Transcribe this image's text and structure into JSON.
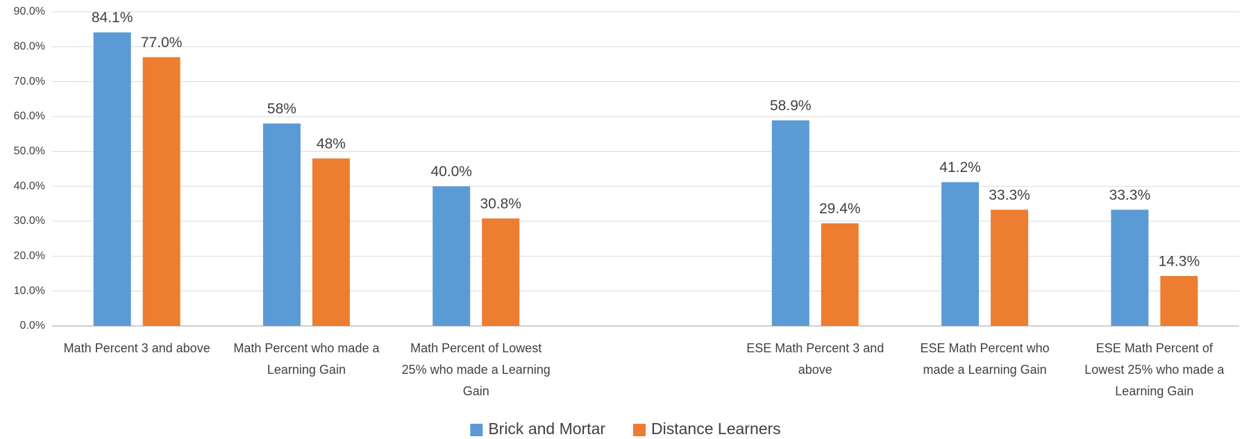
{
  "chart_data": {
    "type": "bar",
    "categories": [
      "Math Percent 3 and above",
      "Math Percent who made a Learning Gain",
      "Math Percent of Lowest 25% who made a Learning Gain",
      null,
      "ESE Math Percent 3 and above",
      "ESE Math Percent who made a Learning Gain",
      "ESE Math Percent of Lowest 25% who made a Learning Gain"
    ],
    "series": [
      {
        "name": "Brick and Mortar",
        "color": "#5b9bd5",
        "values": [
          84.1,
          58,
          40.0,
          null,
          58.9,
          41.2,
          33.3
        ],
        "value_labels": [
          "84.1%",
          "58%",
          "40.0%",
          null,
          "58.9%",
          "41.2%",
          "33.3%"
        ]
      },
      {
        "name": "Distance Learners",
        "color": "#ed7d31",
        "values": [
          77.0,
          48,
          30.8,
          null,
          29.4,
          33.3,
          14.3
        ],
        "value_labels": [
          "77.0%",
          "48%",
          "30.8%",
          null,
          "29.4%",
          "33.3%",
          "14.3%"
        ]
      }
    ],
    "ylim": [
      0,
      90
    ],
    "yticks": [
      {
        "value": 0,
        "label": "0.0%"
      },
      {
        "value": 10,
        "label": "10.0%"
      },
      {
        "value": 20,
        "label": "20.0%"
      },
      {
        "value": 30,
        "label": "30.0%"
      },
      {
        "value": 40,
        "label": "40.0%"
      },
      {
        "value": 50,
        "label": "50.0%"
      },
      {
        "value": 60,
        "label": "60.0%"
      },
      {
        "value": 70,
        "label": "70.0%"
      },
      {
        "value": 80,
        "label": "80.0%"
      },
      {
        "value": 90,
        "label": "90.0%"
      }
    ],
    "grid": true,
    "legend": "bottom"
  }
}
